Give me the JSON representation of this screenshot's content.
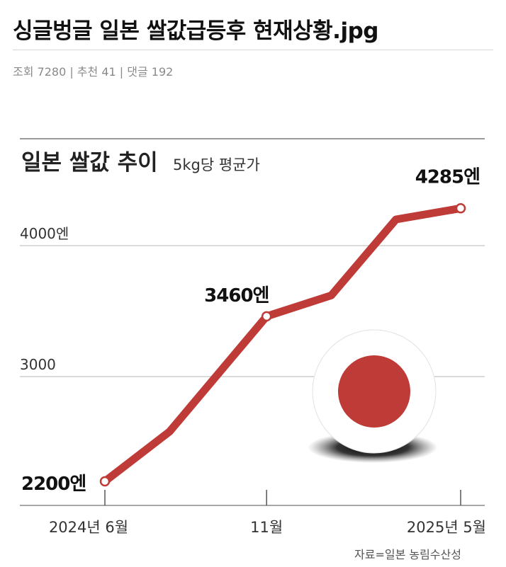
{
  "post": {
    "title": "싱글벙글 일본 쌀값급등후 현재상황.jpg",
    "meta": "조회 7280 | 추천 41 | 댓글 192"
  },
  "chart_data": {
    "type": "line",
    "title": "일본 쌀값 추이",
    "subtitle": "5kg당 평균가",
    "source": "자료=일본 농림수산성",
    "y_unit": "엔",
    "ylim": [
      2000,
      4400
    ],
    "y_ticks": [
      {
        "value": 3000,
        "label": "3000"
      },
      {
        "value": 4000,
        "label": "4000엔"
      }
    ],
    "x_ticks": [
      {
        "x": 0,
        "label": "2024년 6월"
      },
      {
        "x": 5,
        "label": "11월"
      },
      {
        "x": 11,
        "label": "2025년 5월"
      }
    ],
    "series": [
      {
        "points": [
          {
            "x": 0,
            "y": 2200,
            "label": "2200엔",
            "marker": true
          },
          {
            "x": 2,
            "y": 2580,
            "marker": false
          },
          {
            "x": 5,
            "y": 3460,
            "label": "3460엔",
            "marker": true
          },
          {
            "x": 7,
            "y": 3620,
            "marker": false
          },
          {
            "x": 9,
            "y": 4200,
            "marker": false
          },
          {
            "x": 11,
            "y": 4285,
            "label": "4285엔",
            "marker": true
          }
        ],
        "color": "#bf3b38"
      }
    ],
    "colors": {
      "line": "#bf3b38",
      "flag_disc": "#bf3b38",
      "grid": "#cfcfcf",
      "axis": "#8a8a8a"
    },
    "grid": true
  }
}
